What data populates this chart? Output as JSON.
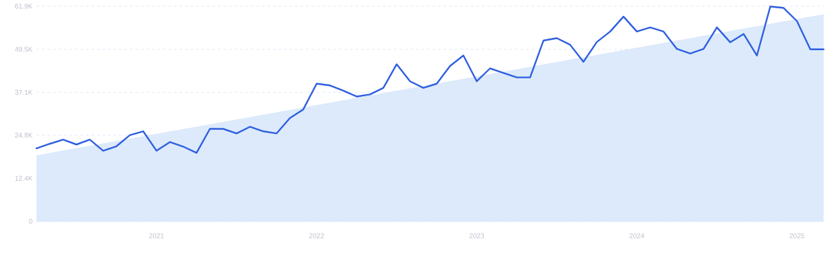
{
  "chart_data": {
    "type": "line",
    "series": [
      {
        "type": "area",
        "color": "#dceafb",
        "x": [
          "2020-04",
          "2025-03"
        ],
        "values": [
          19000,
          59600
        ]
      },
      {
        "color": "#2f5fe0",
        "x": [
          "2020-04",
          "2020-05",
          "2020-06",
          "2020-07",
          "2020-08",
          "2020-09",
          "2020-10",
          "2020-11",
          "2020-12",
          "2021-01",
          "2021-02",
          "2021-03",
          "2021-04",
          "2021-05",
          "2021-06",
          "2021-07",
          "2021-08",
          "2021-09",
          "2021-10",
          "2021-11",
          "2021-12",
          "2022-01",
          "2022-02",
          "2022-03",
          "2022-04",
          "2022-05",
          "2022-06",
          "2022-07",
          "2022-08",
          "2022-09",
          "2022-10",
          "2022-11",
          "2022-12",
          "2023-01",
          "2023-02",
          "2023-03",
          "2023-04",
          "2023-05",
          "2023-06",
          "2023-07",
          "2023-08",
          "2023-09",
          "2023-10",
          "2023-11",
          "2023-12",
          "2024-01",
          "2024-02",
          "2024-03",
          "2024-04",
          "2024-05",
          "2024-06",
          "2024-07",
          "2024-08",
          "2024-09",
          "2024-10",
          "2024-11",
          "2024-12",
          "2025-01",
          "2025-02",
          "2025-03"
        ],
        "values": [
          21000,
          22300,
          23500,
          22100,
          23500,
          20300,
          21600,
          24800,
          25900,
          20300,
          22800,
          21500,
          19700,
          26600,
          26600,
          25300,
          27200,
          25900,
          25300,
          29700,
          32200,
          39600,
          39100,
          37600,
          35900,
          36500,
          38400,
          45200,
          40300,
          38400,
          39600,
          44700,
          47700,
          40300,
          44000,
          42700,
          41400,
          41400,
          52000,
          52700,
          50800,
          45900,
          51600,
          54600,
          58900,
          54600,
          55800,
          54600,
          49600,
          48300,
          49600,
          55800,
          51500,
          53900,
          47700,
          61800,
          61400,
          57600,
          49500,
          49500
        ]
      }
    ],
    "xlim": [
      "2020-04",
      "2025-03"
    ],
    "xticks": [
      {
        "value": "2021-01",
        "label": "2021"
      },
      {
        "value": "2022-01",
        "label": "2022"
      },
      {
        "value": "2023-01",
        "label": "2023"
      },
      {
        "value": "2024-01",
        "label": "2024"
      },
      {
        "value": "2025-01",
        "label": "2025"
      }
    ],
    "ylim": [
      0,
      61900
    ],
    "yticks": [
      0,
      {
        "value": 12400,
        "label": "12.4K"
      },
      {
        "value": 24800,
        "label": "24.8K"
      },
      {
        "value": 37100,
        "label": "37.1K"
      },
      {
        "value": 49500,
        "label": "49.5K"
      },
      {
        "value": 61900,
        "label": "61.9K"
      }
    ],
    "grid": "y"
  }
}
